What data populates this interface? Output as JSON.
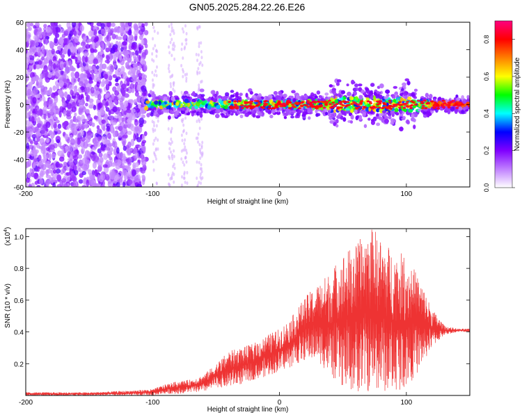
{
  "page_title": "GN05.2025.284.22.26.E26",
  "chart_data": [
    {
      "type": "heatmap",
      "title": "GN05.2025.284.22.26.E26",
      "xlabel": "Height of straight line (km)",
      "ylabel": "Frequency (Hz)",
      "xlim": [
        -200,
        150
      ],
      "ylim": [
        -60,
        60
      ],
      "x_ticks": [
        -200,
        -100,
        0,
        100
      ],
      "y_ticks": [
        -60,
        -40,
        -20,
        0,
        20,
        40,
        60
      ],
      "colorbar": {
        "label": "Normalized spectral amplitude",
        "range": [
          0.0,
          0.9
        ],
        "ticks": [
          "0.0",
          "0.2",
          "0.4",
          "0.6",
          "0.8"
        ],
        "colors": [
          "#ffffff",
          "#c080ff",
          "#8000ff",
          "#0000ff",
          "#00ffff",
          "#00ff00",
          "#ffff00",
          "#ff8000",
          "#ff0000",
          "#ff0080"
        ]
      },
      "grid": false
    },
    {
      "type": "line",
      "xlabel": "Height of straight line (km)",
      "ylabel": "SNR (10 * v/v)",
      "y_multiplier": "(x10",
      "y_multiplier_exp": "4",
      "y_multiplier_close": ")",
      "xlim": [
        -200,
        150
      ],
      "ylim": [
        0,
        1.05
      ],
      "x_ticks": [
        -200,
        -100,
        0,
        100
      ],
      "y_ticks": [
        0.2,
        0.4,
        0.6,
        0.8,
        1.0
      ],
      "grid": false,
      "series": [
        {
          "color": "#ee3333",
          "envelope": {
            "x": [
              -200,
              -150,
              -120,
              -100,
              -90,
              -80,
              -70,
              -60,
              -50,
              -40,
              -30,
              -20,
              -10,
              0,
              10,
              20,
              30,
              40,
              50,
              60,
              70,
              75,
              80,
              90,
              100,
              110,
              120,
              130,
              140,
              150
            ],
            "lower": [
              0.0,
              0.0,
              0.0,
              0.0,
              0.01,
              0.01,
              0.02,
              0.02,
              0.05,
              0.05,
              0.07,
              0.1,
              0.12,
              0.15,
              0.18,
              0.22,
              0.22,
              0.12,
              0.05,
              0.02,
              0.02,
              0.03,
              0.02,
              0.02,
              0.05,
              0.15,
              0.3,
              0.38,
              0.4,
              0.4
            ],
            "upper": [
              0.02,
              0.02,
              0.03,
              0.04,
              0.07,
              0.09,
              0.1,
              0.13,
              0.2,
              0.28,
              0.3,
              0.33,
              0.38,
              0.42,
              0.5,
              0.62,
              0.7,
              0.78,
              0.9,
              0.95,
              1.05,
              1.05,
              0.98,
              0.92,
              0.88,
              0.75,
              0.55,
              0.44,
              0.42,
              0.42
            ]
          }
        }
      ]
    }
  ]
}
